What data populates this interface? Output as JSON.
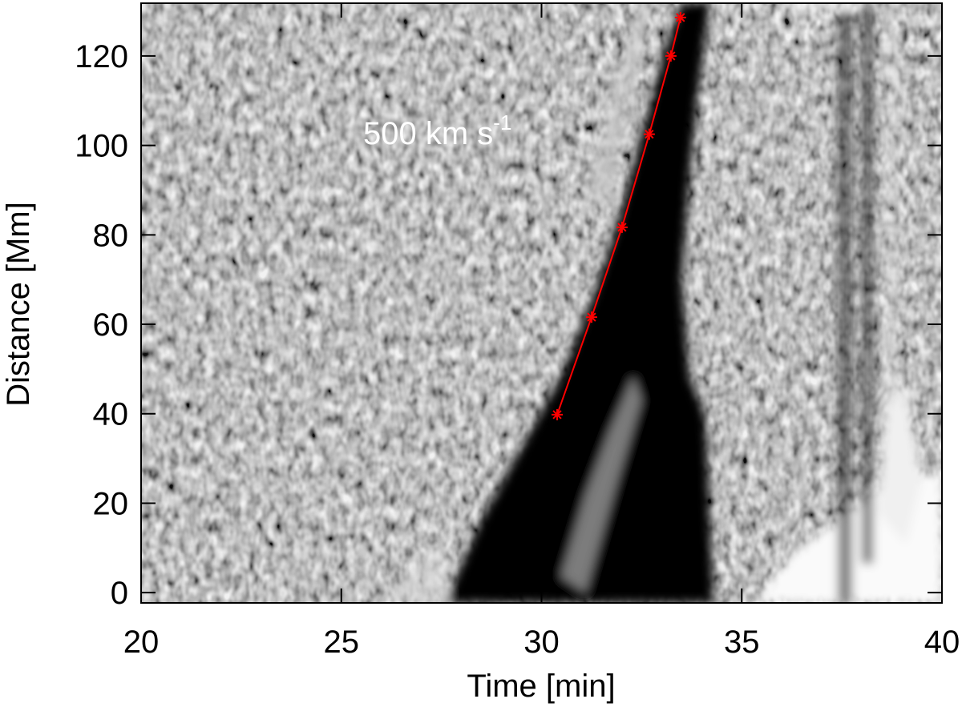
{
  "chart_data": {
    "type": "line",
    "x_label": "Time [min]",
    "y_label": "Distance [Mm]",
    "annotation": {
      "text": "500 km s",
      "superscript": "-1"
    },
    "x": [
      30.39,
      31.25,
      32.01,
      32.69,
      33.23,
      33.47
    ],
    "values": [
      39.8,
      61.6,
      81.7,
      102.5,
      120.0,
      128.6
    ],
    "color": "#ff0000",
    "marker": "asterisk",
    "xlim": [
      20,
      40
    ],
    "xticks": [
      20,
      25,
      30,
      35,
      40
    ],
    "ylim": [
      -2.3,
      131.8
    ],
    "yticks": [
      0,
      20,
      40,
      60,
      80,
      100,
      120
    ]
  }
}
